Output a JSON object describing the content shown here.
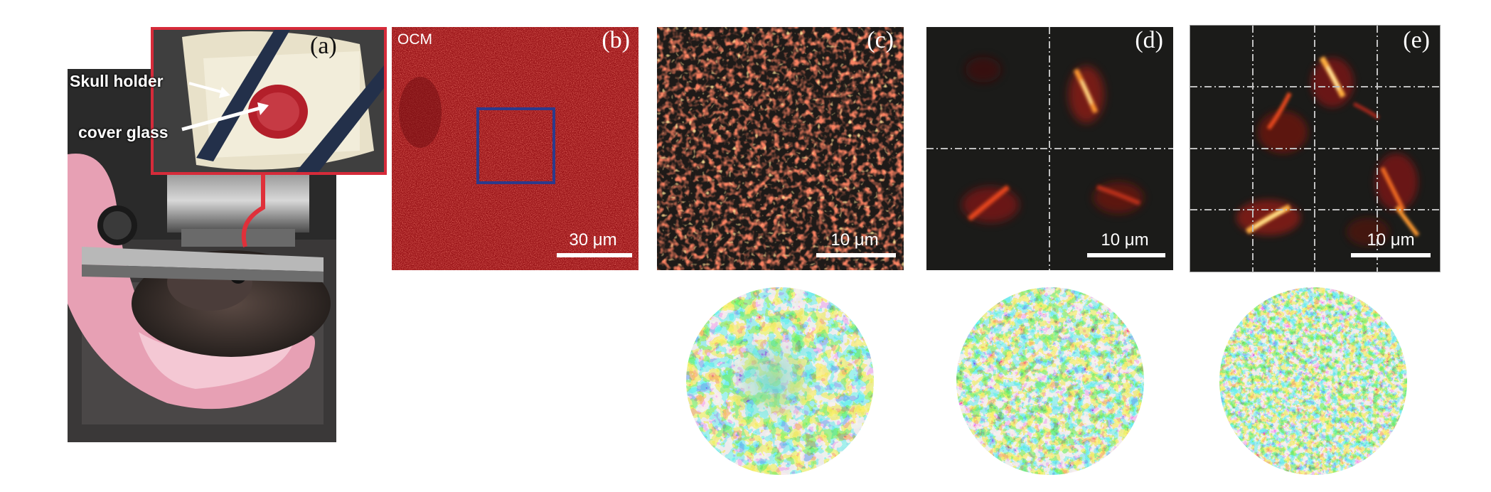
{
  "figure": {
    "panels": [
      {
        "id": "a",
        "letter": "(a)",
        "labels": {
          "skull_holder": "Skull holder",
          "cover_glass": "cover glass"
        }
      },
      {
        "id": "b",
        "letter": "(b)",
        "modality": "OCM",
        "scale": "30 μm"
      },
      {
        "id": "c",
        "letter": "(c)",
        "scale": "10 μm"
      },
      {
        "id": "d",
        "letter": "(d)",
        "scale": "10 μm"
      },
      {
        "id": "e",
        "letter": "(e)",
        "scale": "10 μm"
      }
    ],
    "colors": {
      "inset_border": "#d62b3a",
      "roi_box": "#2c3a8c",
      "ocm_background": "#a3161b",
      "fluorescence_background": "#1b1b19",
      "phase_map_palette": [
        "#1f3a9e",
        "#2f86d8",
        "#5fd0d8",
        "#d8e04a",
        "#f08a2a",
        "#c21a1a"
      ]
    },
    "icons": [
      "scalebar",
      "arrow-icon",
      "roi-box",
      "phase-map"
    ]
  }
}
